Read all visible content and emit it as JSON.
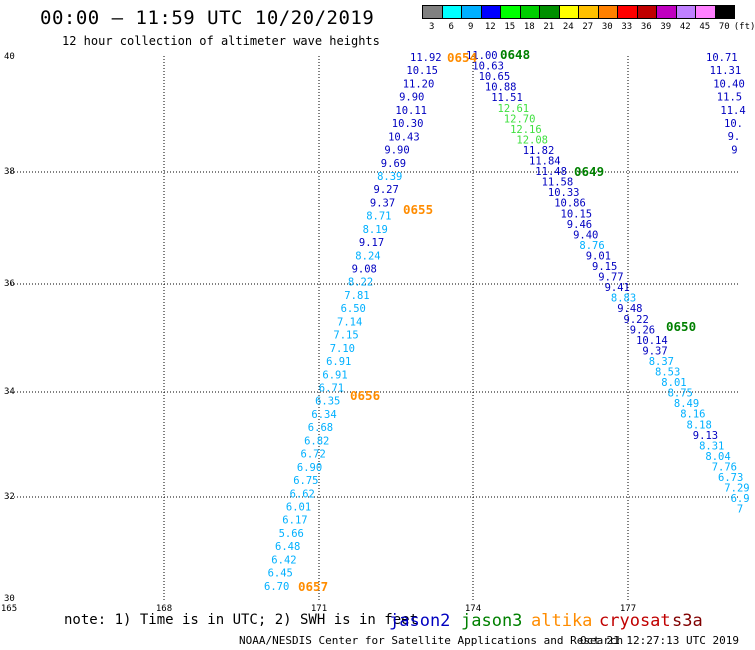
{
  "header": {
    "title": "00:00 — 11:59 UTC 10/20/2019",
    "subtitle": "12 hour collection of altimeter wave heights"
  },
  "scale": {
    "colors": [
      "#808080",
      "#00ffff",
      "#00b0ff",
      "#0000ff",
      "#00ff00",
      "#00d000",
      "#009000",
      "#ffff00",
      "#ffc000",
      "#ff8000",
      "#ff0000",
      "#c00000",
      "#c000c0",
      "#c080ff",
      "#ff80ff",
      "#000000"
    ],
    "labels": [
      "3",
      "6",
      "9",
      "12",
      "15",
      "18",
      "21",
      "24",
      "27",
      "30",
      "33",
      "36",
      "39",
      "42",
      "45",
      "70",
      "(ft)"
    ]
  },
  "axes": {
    "lat_labels": [
      "40",
      "38",
      "36",
      "34",
      "32",
      "30"
    ],
    "lon_labels": [
      "165",
      "168",
      "171",
      "174",
      "177"
    ]
  },
  "colors": {
    "jason2": "#0000c0",
    "jason3": "#008000",
    "altika": "#ff8c00",
    "cryosat": "#c00000",
    "s3a": "#800000",
    "cyan": "#00b0ff",
    "teal": "#00a8c8",
    "lime": "#40e040"
  },
  "tracks": {
    "track1": {
      "values": [
        "11.92",
        "10.15",
        "11.20",
        "9.90",
        "10.11",
        "10.30",
        "10.43",
        "9.90",
        "9.69",
        "8.39",
        "9.27",
        "9.37",
        "8.71",
        "8.19",
        "9.17",
        "8.24",
        "9.08",
        "8.22",
        "7.81",
        "6.50",
        "7.14",
        "7.15",
        "7.10",
        "6.91",
        "6.91",
        "6.71",
        "6.35",
        "6.34",
        "6.68",
        "6.82",
        "6.72",
        "6.90",
        "6.75",
        "6.62",
        "6.01",
        "6.17",
        "5.66",
        "6.48",
        "6.42",
        "6.45",
        "6.70"
      ],
      "colors": [
        "b",
        "b",
        "b",
        "b",
        "b",
        "b",
        "b",
        "b",
        "b",
        "c",
        "b",
        "b",
        "c",
        "c",
        "b",
        "c",
        "b",
        "c",
        "c",
        "c",
        "c",
        "c",
        "c",
        "c",
        "c",
        "c",
        "c",
        "c",
        "c",
        "c",
        "c",
        "c",
        "c",
        "c",
        "c",
        "c",
        "c",
        "c",
        "c",
        "c",
        "c"
      ]
    },
    "track2": {
      "values": [
        "11.00",
        "10.63",
        "10.65",
        "10.88",
        "11.51",
        "12.61",
        "12.70",
        "12.16",
        "12.08",
        "11.82",
        "11.84",
        "11.48",
        "11.58",
        "10.33",
        "10.86",
        "10.15",
        "9.46",
        "9.40",
        "8.76",
        "9.01",
        "9.15",
        "9.77",
        "9.41",
        "8.83",
        "9.48",
        "9.22",
        "9.26",
        "10.14",
        "9.37",
        "8.37",
        "8.53",
        "8.01",
        "8.75",
        "8.49",
        "8.16",
        "8.18",
        "9.13",
        "8.31",
        "8.04",
        "7.76",
        "6.73",
        "7.29",
        "6.9",
        "7"
      ],
      "colors": [
        "b",
        "b",
        "b",
        "b",
        "b",
        "l",
        "l",
        "l",
        "l",
        "b",
        "b",
        "b",
        "b",
        "b",
        "b",
        "b",
        "b",
        "b",
        "c",
        "b",
        "b",
        "b",
        "k",
        "c",
        "b",
        "b",
        "b",
        "b",
        "b",
        "c",
        "c",
        "c",
        "c",
        "c",
        "c",
        "c",
        "b",
        "c",
        "c",
        "c",
        "c",
        "c",
        "c",
        "c"
      ]
    },
    "track3": {
      "values": [
        "10.71",
        "11.31",
        "10.40",
        "11.5",
        "11.4",
        "10.",
        "9.",
        "9"
      ],
      "colors": [
        "b",
        "b",
        "b",
        "b",
        "b",
        "b",
        "b",
        "b"
      ]
    }
  },
  "times": [
    {
      "label": "0654",
      "color": "altika"
    },
    {
      "label": "0648",
      "color": "jason3"
    },
    {
      "label": "0649",
      "color": "jason3"
    },
    {
      "label": "0655",
      "color": "altika"
    },
    {
      "label": "0650",
      "color": "jason3"
    },
    {
      "label": "0656",
      "color": "altika"
    },
    {
      "label": "0657",
      "color": "altika"
    }
  ],
  "notes": {
    "note": "note: 1) Time is in UTC; 2) SWH is in feet",
    "source": "NOAA/NESDIS Center for Satellite Applications and Research",
    "timestamp": "Oct 21 12:27:13 UTC 2019"
  },
  "legend": {
    "jason2": "jason2",
    "jason3": "jason3",
    "altika": "altika",
    "cryosat": "cryosat",
    "s3a": "s3a"
  }
}
